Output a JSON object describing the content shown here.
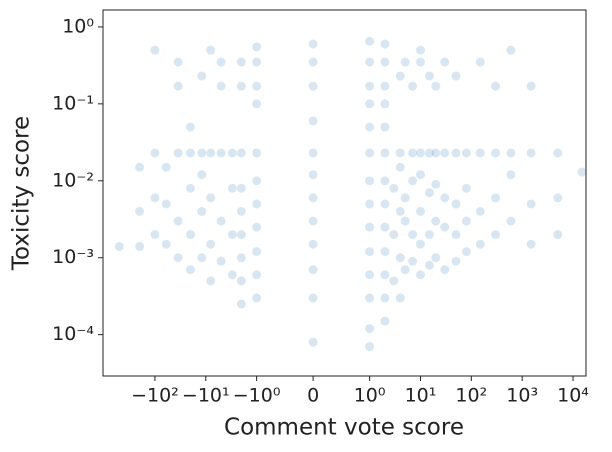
{
  "chart_data": {
    "type": "scatter",
    "xlabel": "Comment vote score",
    "ylabel": "Toxicity score",
    "xscale": "symlog",
    "linthresh": 1,
    "yscale": "log",
    "color": "#1f77b4",
    "xlim": [
      -1050,
      18000
    ],
    "ylim": [
      2.9e-05,
      1.66
    ],
    "xticks": [
      {
        "value": -100,
        "label": "−10²"
      },
      {
        "value": -10,
        "label": "−10¹"
      },
      {
        "value": -1,
        "label": "−10⁰"
      },
      0,
      {
        "value": 1,
        "label": "10⁰"
      },
      {
        "value": 10,
        "label": "10¹"
      },
      {
        "value": 100,
        "label": "10²"
      },
      {
        "value": 1000,
        "label": "10³"
      },
      {
        "value": 10000,
        "label": "10⁴"
      }
    ],
    "yticks": [
      {
        "value": 0.0001,
        "label": "10⁻⁴"
      },
      {
        "value": 0.001,
        "label": "10⁻³"
      },
      {
        "value": 0.01,
        "label": "10⁻²"
      },
      {
        "value": 0.1,
        "label": "10⁻¹"
      },
      {
        "value": 1,
        "label": "10⁰"
      }
    ],
    "x": [
      -2,
      -2,
      -2,
      -2,
      -2,
      -2,
      -2,
      -2,
      -2,
      -1,
      -1,
      -1,
      -1,
      -1,
      -1,
      -1,
      -1,
      -1,
      -1,
      -1,
      0,
      0,
      0,
      0,
      0,
      0,
      0,
      0,
      0,
      0,
      0,
      0,
      1,
      1,
      1,
      1,
      1,
      1,
      1,
      1,
      1,
      1,
      1,
      1,
      1,
      1,
      2,
      2,
      2,
      2,
      2,
      2,
      2,
      2,
      2,
      2,
      2,
      2,
      2,
      3,
      3,
      3,
      4,
      4,
      4,
      4,
      4,
      4,
      5,
      5,
      5,
      5,
      7,
      7,
      7,
      7,
      7,
      10,
      10,
      10,
      10,
      10,
      10,
      10,
      15,
      15,
      15,
      15,
      15,
      20,
      20,
      20,
      20,
      20,
      30,
      30,
      30,
      30,
      30,
      50,
      50,
      50,
      50,
      50,
      80,
      80,
      80,
      80,
      150,
      150,
      150,
      150,
      300,
      300,
      300,
      300,
      600,
      600,
      600,
      600,
      1500,
      1500,
      1500,
      1500,
      5000,
      5000,
      5000,
      15000,
      -3,
      -3,
      -3,
      -3,
      -5,
      -5,
      -5,
      -5,
      -5,
      -8,
      -8,
      -8,
      -8,
      -8,
      -12,
      -12,
      -12,
      -12,
      -12,
      -20,
      -20,
      -20,
      -20,
      -20,
      -35,
      -35,
      -35,
      -35,
      -35,
      -60,
      -60,
      -60,
      -100,
      -100,
      -100,
      -100,
      -200,
      -200,
      -200,
      -500
    ],
    "values": [
      0.00025,
      0.0005,
      0.001,
      0.002,
      0.004,
      0.008,
      0.023,
      0.17,
      0.35,
      0.0003,
      0.0006,
      0.0012,
      0.0025,
      0.005,
      0.01,
      0.023,
      0.1,
      0.17,
      0.35,
      0.55,
      8e-05,
      0.0003,
      0.0007,
      0.0015,
      0.003,
      0.006,
      0.012,
      0.023,
      0.06,
      0.17,
      0.35,
      0.6,
      7e-05,
      0.00012,
      0.0003,
      0.0006,
      0.0012,
      0.0025,
      0.005,
      0.01,
      0.023,
      0.05,
      0.1,
      0.17,
      0.35,
      0.65,
      0.00015,
      0.0003,
      0.0006,
      0.0012,
      0.0025,
      0.005,
      0.01,
      0.023,
      0.05,
      0.1,
      0.17,
      0.35,
      0.6,
      0.0005,
      0.002,
      0.008,
      0.0003,
      0.001,
      0.004,
      0.015,
      0.023,
      0.23,
      0.0007,
      0.003,
      0.006,
      0.35,
      0.0009,
      0.002,
      0.01,
      0.023,
      0.17,
      0.0006,
      0.0015,
      0.004,
      0.012,
      0.023,
      0.35,
      0.5,
      0.0008,
      0.002,
      0.007,
      0.023,
      0.23,
      0.001,
      0.003,
      0.009,
      0.023,
      0.17,
      0.0007,
      0.0025,
      0.006,
      0.023,
      0.35,
      0.0009,
      0.002,
      0.005,
      0.023,
      0.23,
      0.0012,
      0.003,
      0.008,
      0.023,
      0.0015,
      0.004,
      0.023,
      0.35,
      0.002,
      0.006,
      0.023,
      0.17,
      0.003,
      0.012,
      0.023,
      0.5,
      0.0015,
      0.005,
      0.023,
      0.17,
      0.002,
      0.006,
      0.023,
      0.013,
      0.0006,
      0.002,
      0.008,
      0.023,
      0.0009,
      0.003,
      0.023,
      0.17,
      0.35,
      0.0005,
      0.0015,
      0.006,
      0.023,
      0.5,
      0.001,
      0.004,
      0.012,
      0.023,
      0.23,
      0.0007,
      0.002,
      0.008,
      0.023,
      0.05,
      0.001,
      0.003,
      0.023,
      0.17,
      0.35,
      0.0015,
      0.005,
      0.015,
      0.002,
      0.006,
      0.023,
      0.5,
      0.0014,
      0.004,
      0.015,
      0.0014
    ]
  }
}
